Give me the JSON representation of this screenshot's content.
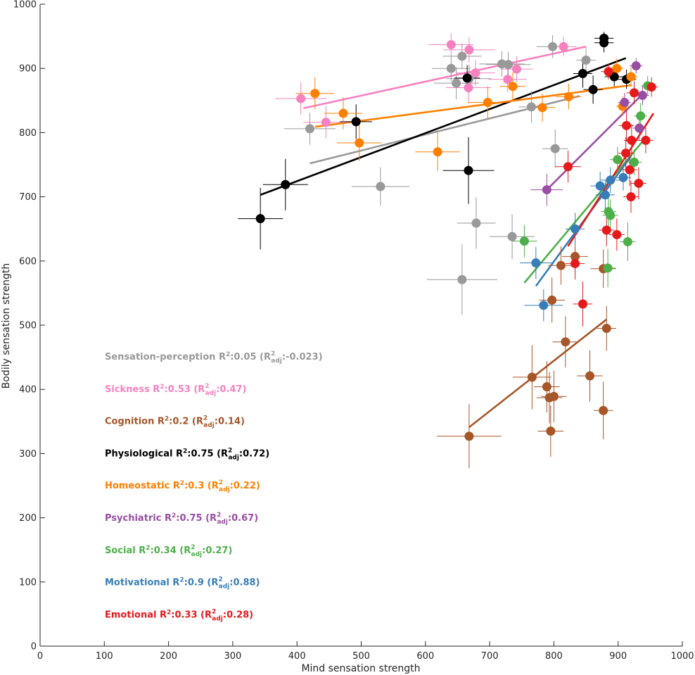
{
  "chart_data": {
    "type": "scatter",
    "xlabel": "Mind sensation strength",
    "ylabel": "Bodily sensation strength",
    "xlim": [
      0,
      1000
    ],
    "ylim": [
      0,
      1000
    ],
    "xticks": [
      0,
      100,
      200,
      300,
      400,
      500,
      600,
      700,
      800,
      900,
      1000
    ],
    "yticks": [
      0,
      100,
      200,
      300,
      400,
      500,
      600,
      700,
      800,
      900,
      1000
    ],
    "grid": false,
    "error_bars": true,
    "series": [
      {
        "name": "Sensation-perception",
        "color": "#999999",
        "r2": "0.05",
        "r2_adj": "-0.023",
        "fit": [
          [
            420,
            752
          ],
          [
            840,
            857
          ]
        ],
        "points": [
          {
            "x": 420,
            "y": 806,
            "xe": 40,
            "ye": 25
          },
          {
            "x": 530,
            "y": 716,
            "xe": 45,
            "ye": 30
          },
          {
            "x": 640,
            "y": 900,
            "xe": 30,
            "ye": 20
          },
          {
            "x": 648,
            "y": 877,
            "xe": 35,
            "ye": 25
          },
          {
            "x": 657,
            "y": 919,
            "xe": 30,
            "ye": 20
          },
          {
            "x": 668,
            "y": 884,
            "xe": 35,
            "ye": 22
          },
          {
            "x": 657,
            "y": 571,
            "xe": 55,
            "ye": 55
          },
          {
            "x": 679,
            "y": 659,
            "xe": 30,
            "ye": 40
          },
          {
            "x": 719,
            "y": 907,
            "xe": 35,
            "ye": 20
          },
          {
            "x": 729,
            "y": 906,
            "xe": 35,
            "ye": 20
          },
          {
            "x": 735,
            "y": 638,
            "xe": 35,
            "ye": 35
          },
          {
            "x": 765,
            "y": 840,
            "xe": 20,
            "ye": 25
          },
          {
            "x": 798,
            "y": 934,
            "xe": 25,
            "ye": 18
          },
          {
            "x": 802,
            "y": 775,
            "xe": 20,
            "ye": 30
          },
          {
            "x": 850,
            "y": 913,
            "xe": 15,
            "ye": 20
          }
        ]
      },
      {
        "name": "Sickness",
        "color": "#f781bf",
        "r2": "0.53",
        "r2_adj": "0.47",
        "fit": [
          [
            410,
            838
          ],
          [
            850,
            934
          ]
        ],
        "points": [
          {
            "x": 406,
            "y": 853,
            "xe": 40,
            "ye": 25
          },
          {
            "x": 445,
            "y": 816,
            "xe": 35,
            "ye": 25
          },
          {
            "x": 640,
            "y": 937,
            "xe": 35,
            "ye": 18
          },
          {
            "x": 668,
            "y": 929,
            "xe": 40,
            "ye": 20
          },
          {
            "x": 667,
            "y": 870,
            "xe": 35,
            "ye": 25
          },
          {
            "x": 678,
            "y": 893,
            "xe": 30,
            "ye": 20
          },
          {
            "x": 728,
            "y": 883,
            "xe": 30,
            "ye": 20
          },
          {
            "x": 742,
            "y": 899,
            "xe": 25,
            "ye": 20
          },
          {
            "x": 815,
            "y": 934,
            "xe": 20,
            "ye": 15
          }
        ]
      },
      {
        "name": "Cognition",
        "color": "#a65628",
        "r2": "0.2",
        "r2_adj": "0.14",
        "fit": [
          [
            668,
            341
          ],
          [
            882,
            509
          ]
        ],
        "points": [
          {
            "x": 668,
            "y": 327,
            "xe": 50,
            "ye": 50
          },
          {
            "x": 766,
            "y": 419,
            "xe": 30,
            "ye": 50
          },
          {
            "x": 789,
            "y": 404,
            "xe": 20,
            "ye": 40
          },
          {
            "x": 793,
            "y": 387,
            "xe": 20,
            "ye": 40
          },
          {
            "x": 795,
            "y": 335,
            "xe": 20,
            "ye": 40
          },
          {
            "x": 797,
            "y": 539,
            "xe": 20,
            "ye": 35
          },
          {
            "x": 800,
            "y": 389,
            "xe": 20,
            "ye": 40
          },
          {
            "x": 811,
            "y": 593,
            "xe": 20,
            "ye": 30
          },
          {
            "x": 818,
            "y": 474,
            "xe": 20,
            "ye": 40
          },
          {
            "x": 833,
            "y": 607,
            "xe": 20,
            "ye": 30
          },
          {
            "x": 856,
            "y": 421,
            "xe": 20,
            "ye": 40
          },
          {
            "x": 877,
            "y": 588,
            "xe": 20,
            "ye": 30
          },
          {
            "x": 877,
            "y": 367,
            "xe": 15,
            "ye": 45
          },
          {
            "x": 882,
            "y": 495,
            "xe": 15,
            "ye": 35
          }
        ]
      },
      {
        "name": "Physiological",
        "color": "#000000",
        "r2": "0.75",
        "r2_adj": "0.72",
        "fit": [
          [
            343,
            703
          ],
          [
            912,
            916
          ]
        ],
        "points": [
          {
            "x": 343,
            "y": 666,
            "xe": 35,
            "ye": 48
          },
          {
            "x": 382,
            "y": 719,
            "xe": 35,
            "ye": 40
          },
          {
            "x": 492,
            "y": 817,
            "xe": 25,
            "ye": 27
          },
          {
            "x": 665,
            "y": 885,
            "xe": 20,
            "ye": 20
          },
          {
            "x": 667,
            "y": 741,
            "xe": 40,
            "ye": 52
          },
          {
            "x": 845,
            "y": 892,
            "xe": 15,
            "ye": 22
          },
          {
            "x": 861,
            "y": 867,
            "xe": 15,
            "ye": 22
          },
          {
            "x": 878,
            "y": 947,
            "xe": 15,
            "ye": 10
          },
          {
            "x": 878,
            "y": 940,
            "xe": 15,
            "ye": 15
          },
          {
            "x": 894,
            "y": 887,
            "xe": 15,
            "ye": 15
          },
          {
            "x": 913,
            "y": 883,
            "xe": 15,
            "ye": 15
          }
        ]
      },
      {
        "name": "Homeostatic",
        "color": "#ff7f00",
        "r2": "0.3",
        "r2_adj": "0.22",
        "fit": [
          [
            428,
            809
          ],
          [
            921,
            874
          ]
        ],
        "points": [
          {
            "x": 428,
            "y": 861,
            "xe": 30,
            "ye": 25
          },
          {
            "x": 472,
            "y": 830,
            "xe": 30,
            "ye": 25
          },
          {
            "x": 497,
            "y": 784,
            "xe": 35,
            "ye": 28
          },
          {
            "x": 619,
            "y": 770,
            "xe": 35,
            "ye": 30
          },
          {
            "x": 697,
            "y": 847,
            "xe": 30,
            "ye": 25
          },
          {
            "x": 736,
            "y": 872,
            "xe": 20,
            "ye": 22
          },
          {
            "x": 782,
            "y": 839,
            "xe": 20,
            "ye": 22
          },
          {
            "x": 823,
            "y": 856,
            "xe": 20,
            "ye": 20
          },
          {
            "x": 898,
            "y": 900,
            "xe": 10,
            "ye": 15
          },
          {
            "x": 907,
            "y": 841,
            "xe": 10,
            "ye": 15
          },
          {
            "x": 920,
            "y": 887,
            "xe": 10,
            "ye": 15
          }
        ]
      },
      {
        "name": "Psychiatric",
        "color": "#984ea3",
        "r2": "0.75",
        "r2_adj": "0.67",
        "fit": [
          [
            789,
            711
          ],
          [
            938,
            860
          ]
        ],
        "points": [
          {
            "x": 789,
            "y": 711,
            "xe": 25,
            "ye": 25
          },
          {
            "x": 910,
            "y": 847,
            "xe": 10,
            "ye": 15
          },
          {
            "x": 928,
            "y": 904,
            "xe": 10,
            "ye": 12
          },
          {
            "x": 933,
            "y": 807,
            "xe": 10,
            "ye": 18
          },
          {
            "x": 938,
            "y": 858,
            "xe": 10,
            "ye": 15
          }
        ]
      },
      {
        "name": "Social",
        "color": "#4daf4a",
        "r2": "0.34",
        "r2_adj": "0.27",
        "fit": [
          [
            754,
            566
          ],
          [
            943,
            792
          ]
        ],
        "points": [
          {
            "x": 754,
            "y": 631,
            "xe": 20,
            "ye": 25
          },
          {
            "x": 884,
            "y": 589,
            "xe": 12,
            "ye": 30
          },
          {
            "x": 885,
            "y": 677,
            "xe": 12,
            "ye": 25
          },
          {
            "x": 888,
            "y": 671,
            "xe": 12,
            "ye": 25
          },
          {
            "x": 899,
            "y": 758,
            "xe": 12,
            "ye": 20
          },
          {
            "x": 915,
            "y": 630,
            "xe": 12,
            "ye": 30
          },
          {
            "x": 925,
            "y": 754,
            "xe": 12,
            "ye": 20
          },
          {
            "x": 935,
            "y": 826,
            "xe": 10,
            "ye": 20
          },
          {
            "x": 946,
            "y": 873,
            "xe": 10,
            "ye": 15
          }
        ]
      },
      {
        "name": "Motivational",
        "color": "#377eb8",
        "r2": "0.9",
        "r2_adj": "0.88",
        "fit": [
          [
            772,
            561
          ],
          [
            920,
            763
          ]
        ],
        "points": [
          {
            "x": 772,
            "y": 597,
            "xe": 25,
            "ye": 25
          },
          {
            "x": 784,
            "y": 531,
            "xe": 30,
            "ye": 25
          },
          {
            "x": 833,
            "y": 650,
            "xe": 15,
            "ye": 25
          },
          {
            "x": 872,
            "y": 717,
            "xe": 15,
            "ye": 22
          },
          {
            "x": 880,
            "y": 703,
            "xe": 15,
            "ye": 22
          },
          {
            "x": 888,
            "y": 726,
            "xe": 15,
            "ye": 20
          },
          {
            "x": 908,
            "y": 730,
            "xe": 12,
            "ye": 20
          }
        ]
      },
      {
        "name": "Emotional",
        "color": "#e41a1c",
        "r2": "0.33",
        "r2_adj": "0.28",
        "fit": [
          [
            822,
            623
          ],
          [
            955,
            830
          ]
        ],
        "points": [
          {
            "x": 822,
            "y": 747,
            "xe": 20,
            "ye": 25
          },
          {
            "x": 833,
            "y": 596,
            "xe": 15,
            "ye": 25
          },
          {
            "x": 845,
            "y": 533,
            "xe": 15,
            "ye": 35
          },
          {
            "x": 882,
            "y": 648,
            "xe": 12,
            "ye": 25
          },
          {
            "x": 885,
            "y": 895,
            "xe": 12,
            "ye": 12
          },
          {
            "x": 898,
            "y": 641,
            "xe": 12,
            "ye": 25
          },
          {
            "x": 912,
            "y": 768,
            "xe": 12,
            "ye": 25
          },
          {
            "x": 913,
            "y": 811,
            "xe": 12,
            "ye": 25
          },
          {
            "x": 918,
            "y": 742,
            "xe": 12,
            "ye": 25
          },
          {
            "x": 920,
            "y": 700,
            "xe": 12,
            "ye": 25
          },
          {
            "x": 921,
            "y": 788,
            "xe": 12,
            "ye": 25
          },
          {
            "x": 925,
            "y": 862,
            "xe": 12,
            "ye": 18
          },
          {
            "x": 932,
            "y": 721,
            "xe": 12,
            "ye": 25
          },
          {
            "x": 943,
            "y": 788,
            "xe": 12,
            "ye": 20
          },
          {
            "x": 952,
            "y": 871,
            "xe": 10,
            "ye": 15
          }
        ]
      }
    ]
  }
}
